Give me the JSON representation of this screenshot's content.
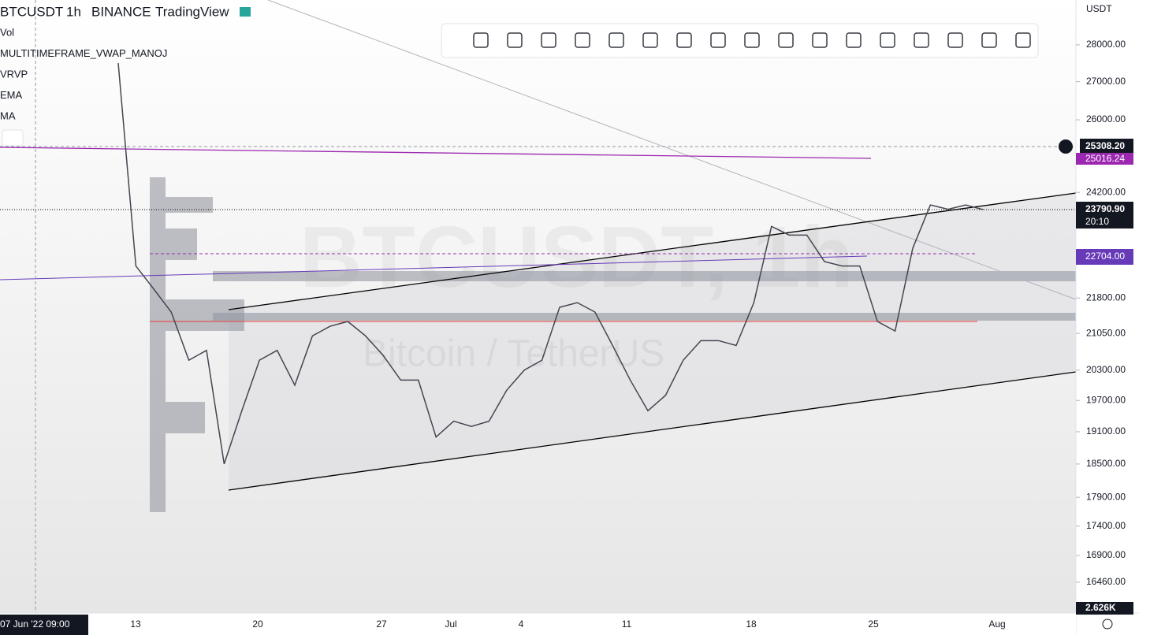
{
  "header": {
    "symbol": "BTCUSDT",
    "interval": "1h",
    "exchange": "BINANCE",
    "platform": "TradingView"
  },
  "indicators": [
    "Vol",
    "MULTITIMEFRAME_VWAP_MANOJ",
    "VRVP",
    "EMA",
    "MA"
  ],
  "watermark": {
    "main": "BTCUSDT, 1h",
    "sub": "Bitcoin / TetherUS"
  },
  "currency": "USDT",
  "chart_data": {
    "type": "line",
    "log_scale": true,
    "ylim": [
      15966,
      29270
    ],
    "yticks": [
      {
        "value": 28000,
        "label": "28000.00"
      },
      {
        "value": 27000,
        "label": "27000.00"
      },
      {
        "value": 26000,
        "label": "26000.00"
      },
      {
        "value": 24200,
        "label": "24200.00"
      },
      {
        "value": 21800,
        "label": "21800.00"
      },
      {
        "value": 21050,
        "label": "21050.00"
      },
      {
        "value": 20300,
        "label": "20300.00"
      },
      {
        "value": 19700,
        "label": "19700.00"
      },
      {
        "value": 19100,
        "label": "19100.00"
      },
      {
        "value": 18500,
        "label": "18500.00"
      },
      {
        "value": 17900,
        "label": "17900.00"
      },
      {
        "value": 17400,
        "label": "17400.00"
      },
      {
        "value": 16900,
        "label": "16900.00"
      },
      {
        "value": 16460,
        "label": "16460.00"
      }
    ],
    "x_labels": [
      "13",
      "20",
      "27",
      "Jul",
      "4",
      "11",
      "18",
      "25",
      "Aug"
    ],
    "crosshair_time": "07 Jun '22  09:00",
    "series": [
      {
        "name": "BTCUSDT",
        "color": "#434651",
        "values": [
          27500,
          22500,
          22000,
          21500,
          20500,
          20700,
          18500,
          19500,
          20500,
          20700,
          20000,
          21000,
          21200,
          21300,
          21000,
          20600,
          20100,
          20100,
          19000,
          19300,
          19200,
          19300,
          19900,
          20300,
          20500,
          21600,
          21700,
          21500,
          20800,
          20100,
          19500,
          19800,
          20500,
          20900,
          20900,
          20800,
          21700,
          23400,
          23200,
          23200,
          22600,
          22500,
          22500,
          21300,
          21100,
          22900,
          23900,
          23800,
          23900,
          23790.9
        ]
      }
    ],
    "price_tags": {
      "crosshair": "25308.20",
      "vwap": "25016.24",
      "last": "23790.90",
      "countdown": "20:10",
      "level": "22704.00",
      "volume": "2.626K"
    }
  }
}
